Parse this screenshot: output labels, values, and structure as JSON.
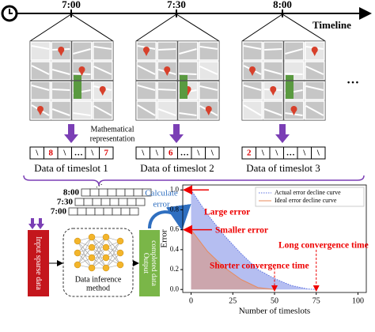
{
  "timeline": {
    "times": [
      "7:00",
      "7:30",
      "8:00"
    ],
    "label": "Timeline",
    "more": "…"
  },
  "note": [
    "Mathematical",
    "representation"
  ],
  "slots": [
    {
      "cells": [
        "\\",
        "8",
        "\\",
        "…",
        "\\",
        "7"
      ],
      "label": "Data of timeslot 1"
    },
    {
      "cells": [
        "\\",
        "\\",
        "6",
        "…",
        "\\",
        "\\"
      ],
      "label": "Data of timeslot 2"
    },
    {
      "cells": [
        "2",
        "\\",
        "\\",
        "…",
        "\\",
        "\\"
      ],
      "label": "Data of timeslot 3"
    }
  ],
  "stack": {
    "times": [
      "8:00",
      "7:30",
      "7:00"
    ]
  },
  "pipeline": {
    "input": "Input sparse data",
    "method": [
      "Data inference",
      "method"
    ],
    "output": [
      "Output",
      "completed data"
    ],
    "calculate": [
      "Calculate",
      "error"
    ]
  },
  "chart_data": {
    "type": "area",
    "xlabel": "Number of timeslots",
    "ylabel": "Error",
    "xlim": [
      -5,
      105
    ],
    "xticks": [
      0,
      25,
      50,
      75,
      100
    ],
    "ylim": [
      -0.03,
      1.05
    ],
    "yticks": [
      {
        "value": 0,
        "label": "0.0"
      },
      {
        "value": 0.2,
        "label": "0.2"
      },
      {
        "value": 0.4,
        "label": "0.4"
      },
      {
        "value": 0.6,
        "label": "0.6"
      },
      {
        "value": 0.8,
        "label": "0.8"
      },
      {
        "value": 1,
        "label": "1.0"
      }
    ],
    "legend": "upper right",
    "series": [
      {
        "name": "Actual error decline curve",
        "color": "#5b6fe0",
        "linestyle": "dotted",
        "x": [
          0,
          10,
          20,
          30,
          40,
          50,
          60,
          70,
          75
        ],
        "values": [
          1,
          0.75,
          0.54,
          0.36,
          0.2,
          0.11,
          0.04,
          0.005,
          0
        ]
      },
      {
        "name": "Ideal error decline curve",
        "color": "#e8895a",
        "linestyle": "solid",
        "x": [
          0,
          10,
          20,
          30,
          40,
          50
        ],
        "values": [
          0.6,
          0.38,
          0.22,
          0.1,
          0.02,
          0
        ]
      }
    ],
    "annotations": [
      "Large error",
      "Smaller error",
      "Long convergence time",
      "Shorter convergence time"
    ]
  }
}
